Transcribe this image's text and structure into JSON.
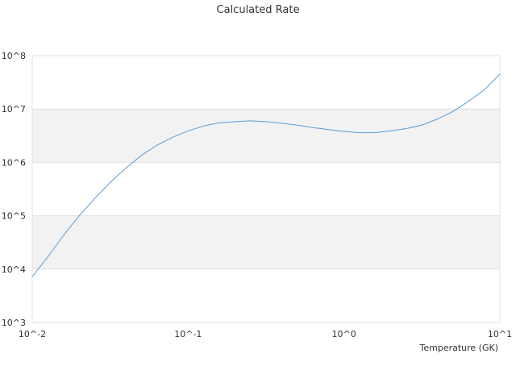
{
  "chart_data": {
    "type": "line",
    "title": "Calculated Rate",
    "xlabel": "Temperature (GK)",
    "ylabel": "",
    "x_scale": "log",
    "y_scale": "log",
    "xlim": [
      0.01,
      10
    ],
    "ylim": [
      1000,
      100000000
    ],
    "x_tick_labels": [
      "10^-2",
      "10^-1",
      "10^0",
      "10^1"
    ],
    "y_tick_labels": [
      "10^3",
      "10^4",
      "10^5",
      "10^6",
      "10^7",
      "10^8"
    ],
    "grid": "horizontal bands, alternating",
    "legend": "none",
    "colors": {
      "line": "#5b9bd5",
      "band": "#f2f2f2",
      "gridline": "#e0e0e0"
    },
    "series": [
      {
        "x": [
          0.01,
          0.0126,
          0.0158,
          0.02,
          0.0251,
          0.0316,
          0.0398,
          0.0501,
          0.0631,
          0.0794,
          0.1,
          0.126,
          0.158,
          0.2,
          0.251,
          0.316,
          0.398,
          0.501,
          0.631,
          0.794,
          1.0,
          1.26,
          1.58,
          2.0,
          2.51,
          3.16,
          3.98,
          5.01,
          6.31,
          7.94,
          10.0
        ],
        "y": [
          7200,
          17000,
          42000,
          100000,
          210000,
          420000,
          780000,
          1350000,
          2100000,
          2950000,
          3900000,
          4800000,
          5500000,
          5800000,
          6000000,
          5800000,
          5400000,
          5000000,
          4500000,
          4100000,
          3800000,
          3600000,
          3600000,
          3900000,
          4300000,
          5000000,
          6500000,
          9000000,
          14000000,
          23000000,
          45000000
        ]
      }
    ]
  }
}
